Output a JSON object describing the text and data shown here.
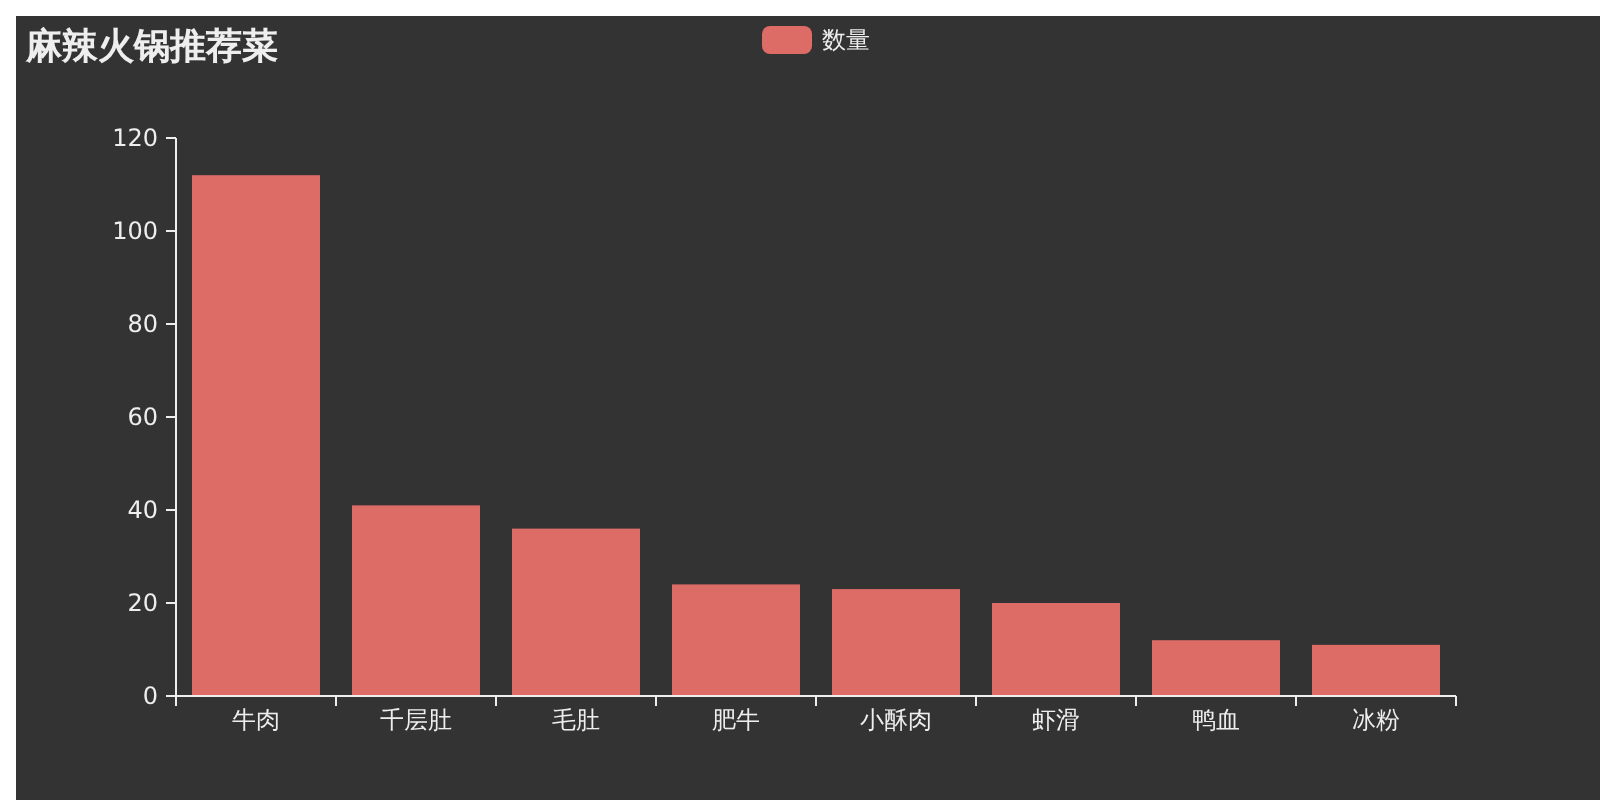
{
  "chart_data": {
    "type": "bar",
    "title": "麻辣火锅推荐菜",
    "categories": [
      "牛肉",
      "千层肚",
      "毛肚",
      "肥牛",
      "小酥肉",
      "虾滑",
      "鸭血",
      "冰粉"
    ],
    "series": [
      {
        "name": "数量",
        "color": "#dd6b66",
        "values": [
          112,
          41,
          36,
          24,
          23,
          20,
          12,
          11
        ]
      }
    ],
    "ylim": [
      0,
      120
    ],
    "yticks": [
      0,
      20,
      40,
      60,
      80,
      100,
      120
    ],
    "legend": "top",
    "grid": false
  }
}
